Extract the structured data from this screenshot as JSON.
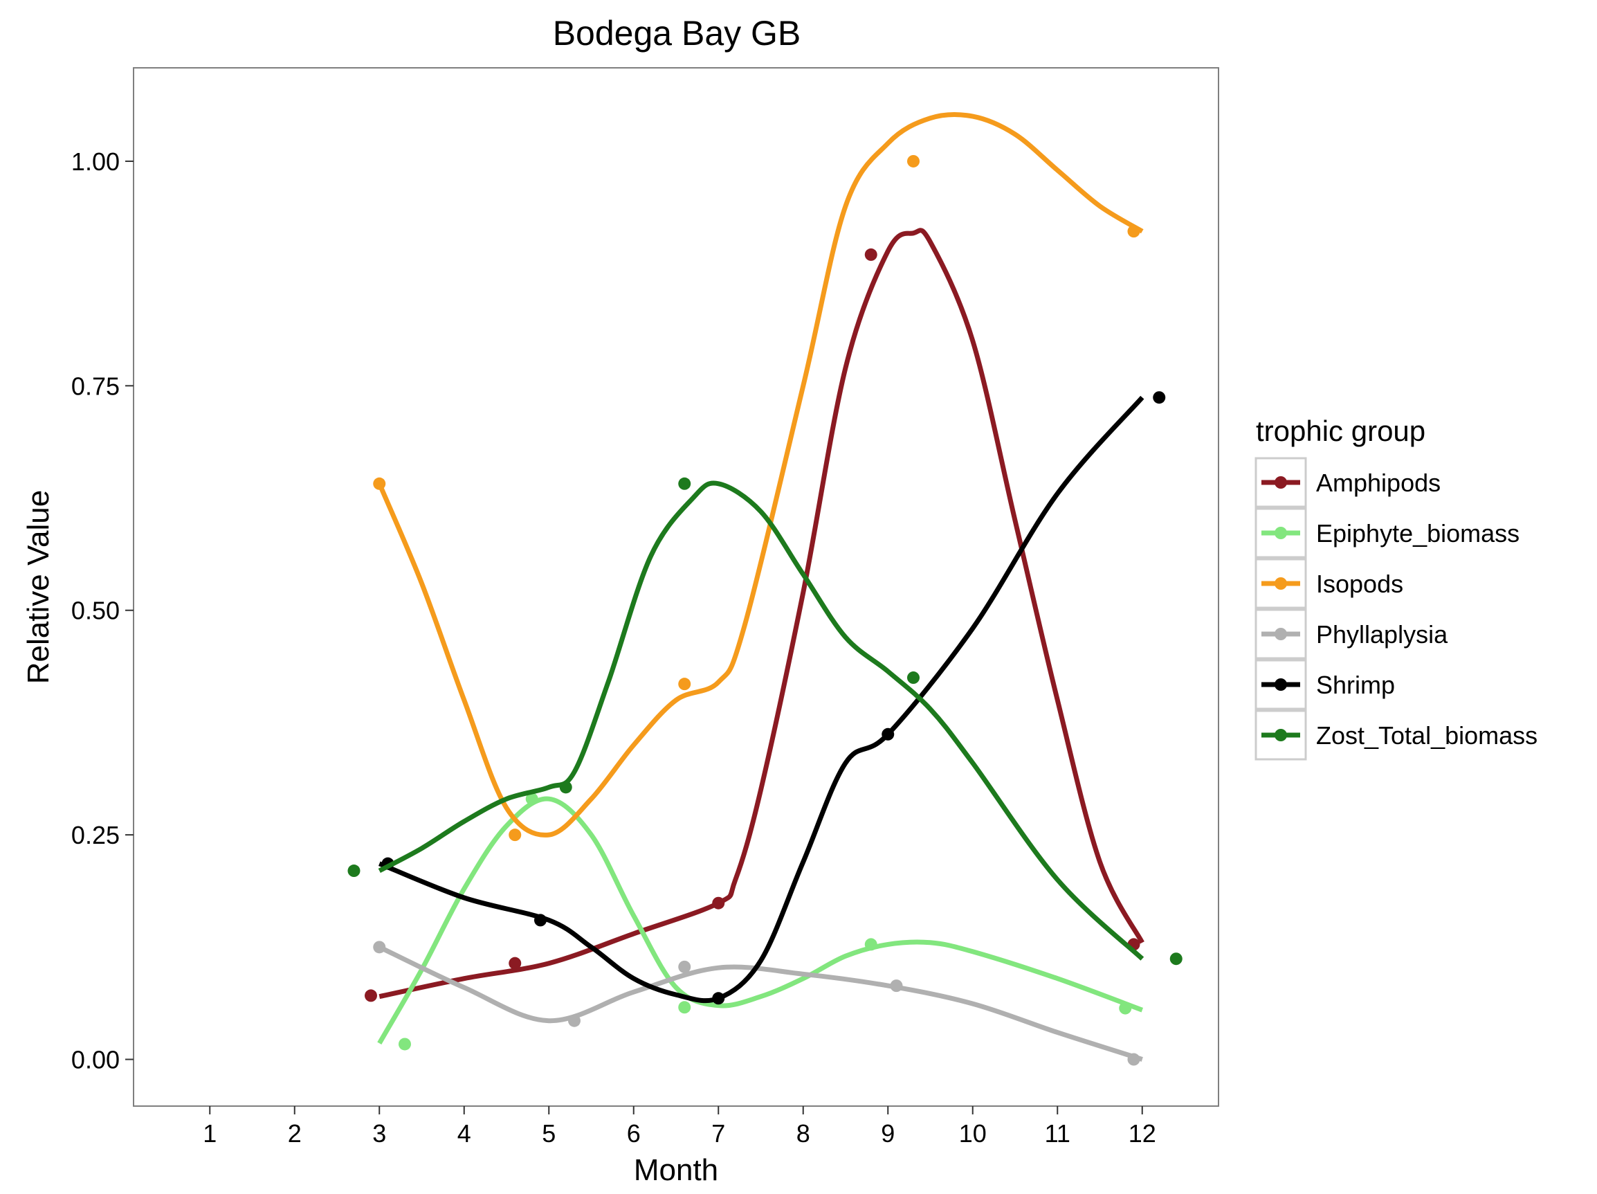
{
  "chart_data": {
    "type": "line",
    "title": "Bodega Bay GB",
    "xlabel": "Month",
    "ylabel": "Relative Value",
    "xlim": [
      0.1,
      12.9
    ],
    "ylim": [
      -0.052,
      1.104
    ],
    "x_ticks": [
      "1",
      "2",
      "3",
      "4",
      "5",
      "6",
      "7",
      "8",
      "9",
      "10",
      "11",
      "12"
    ],
    "y_ticks": [
      "0.00",
      "0.25",
      "0.50",
      "0.75",
      "1.00"
    ],
    "grid": false,
    "legend": {
      "title": "trophic group",
      "placement": "right"
    },
    "series": [
      {
        "name": "Amphipods",
        "color": "#8B1A22",
        "points": [
          [
            2.9,
            0.071
          ],
          [
            4.6,
            0.107
          ],
          [
            7.0,
            0.174
          ],
          [
            8.8,
            0.896
          ],
          [
            11.9,
            0.128
          ]
        ],
        "curve": [
          [
            3,
            0.07
          ],
          [
            4,
            0.09
          ],
          [
            5,
            0.107
          ],
          [
            6,
            0.14
          ],
          [
            7,
            0.174
          ],
          [
            7.2,
            0.2
          ],
          [
            7.5,
            0.3
          ],
          [
            8,
            0.52
          ],
          [
            8.5,
            0.77
          ],
          [
            9,
            0.9
          ],
          [
            9.3,
            0.92
          ],
          [
            9.5,
            0.91
          ],
          [
            10,
            0.8
          ],
          [
            10.5,
            0.6
          ],
          [
            11,
            0.4
          ],
          [
            11.5,
            0.22
          ],
          [
            12,
            0.13
          ]
        ]
      },
      {
        "name": "Epiphyte_biomass",
        "color": "#82E67E",
        "points": [
          [
            3.3,
            0.017
          ],
          [
            4.8,
            0.29
          ],
          [
            6.6,
            0.058
          ],
          [
            8.8,
            0.128
          ],
          [
            11.8,
            0.057
          ]
        ],
        "curve": [
          [
            3,
            0.018
          ],
          [
            3.5,
            0.1
          ],
          [
            4,
            0.19
          ],
          [
            4.5,
            0.26
          ],
          [
            5,
            0.29
          ],
          [
            5.5,
            0.25
          ],
          [
            6,
            0.16
          ],
          [
            6.5,
            0.08
          ],
          [
            7,
            0.06
          ],
          [
            7.5,
            0.07
          ],
          [
            8,
            0.09
          ],
          [
            8.5,
            0.115
          ],
          [
            9,
            0.128
          ],
          [
            9.5,
            0.13
          ],
          [
            10,
            0.12
          ],
          [
            11,
            0.09
          ],
          [
            12,
            0.055
          ]
        ]
      },
      {
        "name": "Isopods",
        "color": "#F59B1C",
        "points": [
          [
            3.0,
            0.641
          ],
          [
            4.6,
            0.25
          ],
          [
            6.6,
            0.418
          ],
          [
            9.3,
            1.0
          ],
          [
            11.9,
            0.922
          ]
        ],
        "curve": [
          [
            3,
            0.641
          ],
          [
            3.5,
            0.53
          ],
          [
            4,
            0.4
          ],
          [
            4.5,
            0.28
          ],
          [
            5,
            0.25
          ],
          [
            5.5,
            0.29
          ],
          [
            6,
            0.35
          ],
          [
            6.5,
            0.4
          ],
          [
            7,
            0.42
          ],
          [
            7.3,
            0.48
          ],
          [
            8,
            0.75
          ],
          [
            8.5,
            0.95
          ],
          [
            9,
            1.02
          ],
          [
            9.5,
            1.048
          ],
          [
            10,
            1.05
          ],
          [
            10.5,
            1.03
          ],
          [
            11,
            0.99
          ],
          [
            11.5,
            0.95
          ],
          [
            12,
            0.922
          ]
        ]
      },
      {
        "name": "Phyllaplysia",
        "color": "#B0B0B0",
        "points": [
          [
            3.0,
            0.125
          ],
          [
            5.3,
            0.043
          ],
          [
            6.6,
            0.103
          ],
          [
            9.1,
            0.082
          ],
          [
            11.9,
            0.0
          ]
        ],
        "curve": [
          [
            3,
            0.125
          ],
          [
            4,
            0.08
          ],
          [
            5,
            0.043
          ],
          [
            6,
            0.075
          ],
          [
            7,
            0.102
          ],
          [
            8,
            0.095
          ],
          [
            9,
            0.082
          ],
          [
            10,
            0.062
          ],
          [
            11,
            0.03
          ],
          [
            12,
            0.0
          ]
        ]
      },
      {
        "name": "Shrimp",
        "color": "#000000",
        "points": [
          [
            3.1,
            0.218
          ],
          [
            4.9,
            0.155
          ],
          [
            7.0,
            0.068
          ],
          [
            9.0,
            0.362
          ],
          [
            12.2,
            0.737
          ]
        ],
        "curve": [
          [
            3,
            0.218
          ],
          [
            4,
            0.18
          ],
          [
            5,
            0.155
          ],
          [
            5.5,
            0.125
          ],
          [
            6,
            0.09
          ],
          [
            6.5,
            0.072
          ],
          [
            7,
            0.068
          ],
          [
            7.5,
            0.11
          ],
          [
            8,
            0.22
          ],
          [
            8.5,
            0.33
          ],
          [
            9,
            0.362
          ],
          [
            10,
            0.48
          ],
          [
            11,
            0.63
          ],
          [
            12,
            0.737
          ]
        ]
      },
      {
        "name": "Zost_Total_biomass",
        "color": "#1D7A1D",
        "points": [
          [
            2.7,
            0.21
          ],
          [
            5.2,
            0.303
          ],
          [
            6.6,
            0.641
          ],
          [
            9.3,
            0.425
          ],
          [
            12.4,
            0.112
          ]
        ],
        "curve": [
          [
            3,
            0.21
          ],
          [
            3.5,
            0.235
          ],
          [
            4,
            0.265
          ],
          [
            4.5,
            0.29
          ],
          [
            5,
            0.303
          ],
          [
            5.3,
            0.32
          ],
          [
            5.7,
            0.42
          ],
          [
            6.2,
            0.56
          ],
          [
            6.7,
            0.625
          ],
          [
            7,
            0.641
          ],
          [
            7.5,
            0.61
          ],
          [
            8,
            0.54
          ],
          [
            8.5,
            0.47
          ],
          [
            9,
            0.432
          ],
          [
            9.5,
            0.39
          ],
          [
            10,
            0.33
          ],
          [
            11,
            0.2
          ],
          [
            12,
            0.112
          ]
        ]
      }
    ]
  }
}
